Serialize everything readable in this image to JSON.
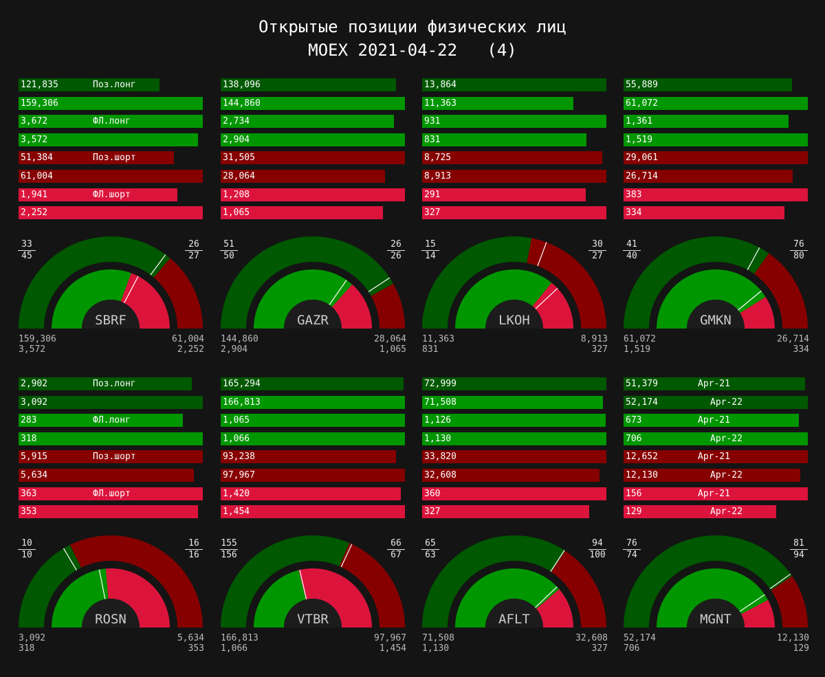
{
  "title": {
    "line1": "Открытые позиции физических лиц",
    "line2": "MOEX 2021-04-22   (4)"
  },
  "colors": {
    "dark_green": "#005800",
    "green": "#009600",
    "dark_red": "#860000",
    "red": "#dc143c",
    "background": "#141414"
  },
  "chart_data": {
    "type": "bar",
    "title": "Открытые позиции физических лиц MOEX 2021-04-22 (4)",
    "row_series": [
      "Поз.лонг prev",
      "Поз.лонг",
      "ФЛ.лонг prev",
      "ФЛ.лонг",
      "Поз.шорт prev",
      "Поз.шорт",
      "ФЛ.шорт prev",
      "ФЛ.шорт"
    ],
    "tickers": [
      {
        "name": "SBRF",
        "values": [
          "121,835",
          "159,306",
          "3,672",
          "3,572",
          "51,384",
          "61,004",
          "1,941",
          "2,252"
        ],
        "labels": [
          "Поз.лонг",
          "",
          "ФЛ.лонг",
          "",
          "Поз.шорт",
          "",
          "ФЛ.шорт",
          ""
        ],
        "gauge": {
          "tl_top": "33",
          "tl_bot": "45",
          "tr_top": "26",
          "tr_bot": "27"
        },
        "footer": {
          "l1": "159,306",
          "l2": "3,572",
          "r1": "61,004",
          "r2": "2,252"
        }
      },
      {
        "name": "GAZR",
        "values": [
          "138,096",
          "144,860",
          "2,734",
          "2,904",
          "31,505",
          "28,064",
          "1,208",
          "1,065"
        ],
        "labels": [
          "",
          "",
          "",
          "",
          "",
          "",
          "",
          ""
        ],
        "gauge": {
          "tl_top": "51",
          "tl_bot": "50",
          "tr_top": "26",
          "tr_bot": "26"
        },
        "footer": {
          "l1": "144,860",
          "l2": "2,904",
          "r1": "28,064",
          "r2": "1,065"
        }
      },
      {
        "name": "LKOH",
        "values": [
          "13,864",
          "11,363",
          "931",
          "831",
          "8,725",
          "8,913",
          "291",
          "327"
        ],
        "labels": [
          "",
          "",
          "",
          "",
          "",
          "",
          "",
          ""
        ],
        "gauge": {
          "tl_top": "15",
          "tl_bot": "14",
          "tr_top": "30",
          "tr_bot": "27"
        },
        "footer": {
          "l1": "11,363",
          "l2": "831",
          "r1": "8,913",
          "r2": "327"
        }
      },
      {
        "name": "GMKN",
        "values": [
          "55,889",
          "61,072",
          "1,361",
          "1,519",
          "29,061",
          "26,714",
          "383",
          "334"
        ],
        "labels": [
          "",
          "",
          "",
          "",
          "",
          "",
          "",
          ""
        ],
        "gauge": {
          "tl_top": "41",
          "tl_bot": "40",
          "tr_top": "76",
          "tr_bot": "80"
        },
        "footer": {
          "l1": "61,072",
          "l2": "1,519",
          "r1": "26,714",
          "r2": "334"
        }
      },
      {
        "name": "ROSN",
        "values": [
          "2,902",
          "3,092",
          "283",
          "318",
          "5,915",
          "5,634",
          "363",
          "353"
        ],
        "labels": [
          "Поз.лонг",
          "",
          "ФЛ.лонг",
          "",
          "Поз.шорт",
          "",
          "ФЛ.шорт",
          ""
        ],
        "gauge": {
          "tl_top": "10",
          "tl_bot": "10",
          "tr_top": "16",
          "tr_bot": "16"
        },
        "footer": {
          "l1": "3,092",
          "l2": "318",
          "r1": "5,634",
          "r2": "353"
        }
      },
      {
        "name": "VTBR",
        "values": [
          "165,294",
          "166,813",
          "1,065",
          "1,066",
          "93,238",
          "97,967",
          "1,420",
          "1,454"
        ],
        "labels": [
          "",
          "",
          "",
          "",
          "",
          "",
          "",
          ""
        ],
        "gauge": {
          "tl_top": "155",
          "tl_bot": "156",
          "tr_top": "66",
          "tr_bot": "67"
        },
        "footer": {
          "l1": "166,813",
          "l2": "1,066",
          "r1": "97,967",
          "r2": "1,454"
        }
      },
      {
        "name": "AFLT",
        "values": [
          "72,999",
          "71,508",
          "1,126",
          "1,130",
          "33,820",
          "32,608",
          "360",
          "327"
        ],
        "labels": [
          "",
          "",
          "",
          "",
          "",
          "",
          "",
          ""
        ],
        "gauge": {
          "tl_top": "65",
          "tl_bot": "63",
          "tr_top": "94",
          "tr_bot": "100"
        },
        "footer": {
          "l1": "71,508",
          "l2": "1,130",
          "r1": "32,608",
          "r2": "327"
        }
      },
      {
        "name": "MGNT",
        "values": [
          "51,379",
          "52,174",
          "673",
          "706",
          "12,652",
          "12,130",
          "156",
          "129"
        ],
        "labels": [
          "Apr-21",
          "Apr-22",
          "Apr-21",
          "Apr-22",
          "Apr-21",
          "Apr-22",
          "Apr-21",
          "Apr-22"
        ],
        "gauge": {
          "tl_top": "76",
          "tl_bot": "74",
          "tr_top": "81",
          "tr_bot": "94"
        },
        "footer": {
          "l1": "52,174",
          "l2": "706",
          "r1": "12,130",
          "r2": "129"
        }
      }
    ]
  }
}
